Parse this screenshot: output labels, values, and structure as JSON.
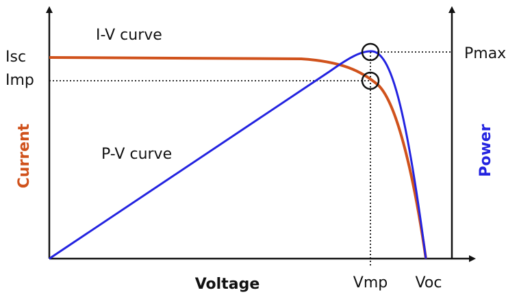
{
  "axes": {
    "x_label": "Voltage",
    "y_left_label": "Current",
    "y_right_label": "Power"
  },
  "curves": {
    "iv_label": "I-V curve",
    "pv_label": "P-V curve"
  },
  "markers": {
    "isc": "Isc",
    "imp": "Imp",
    "pmax": "Pmax",
    "vmp": "Vmp",
    "voc": "Voc"
  }
}
